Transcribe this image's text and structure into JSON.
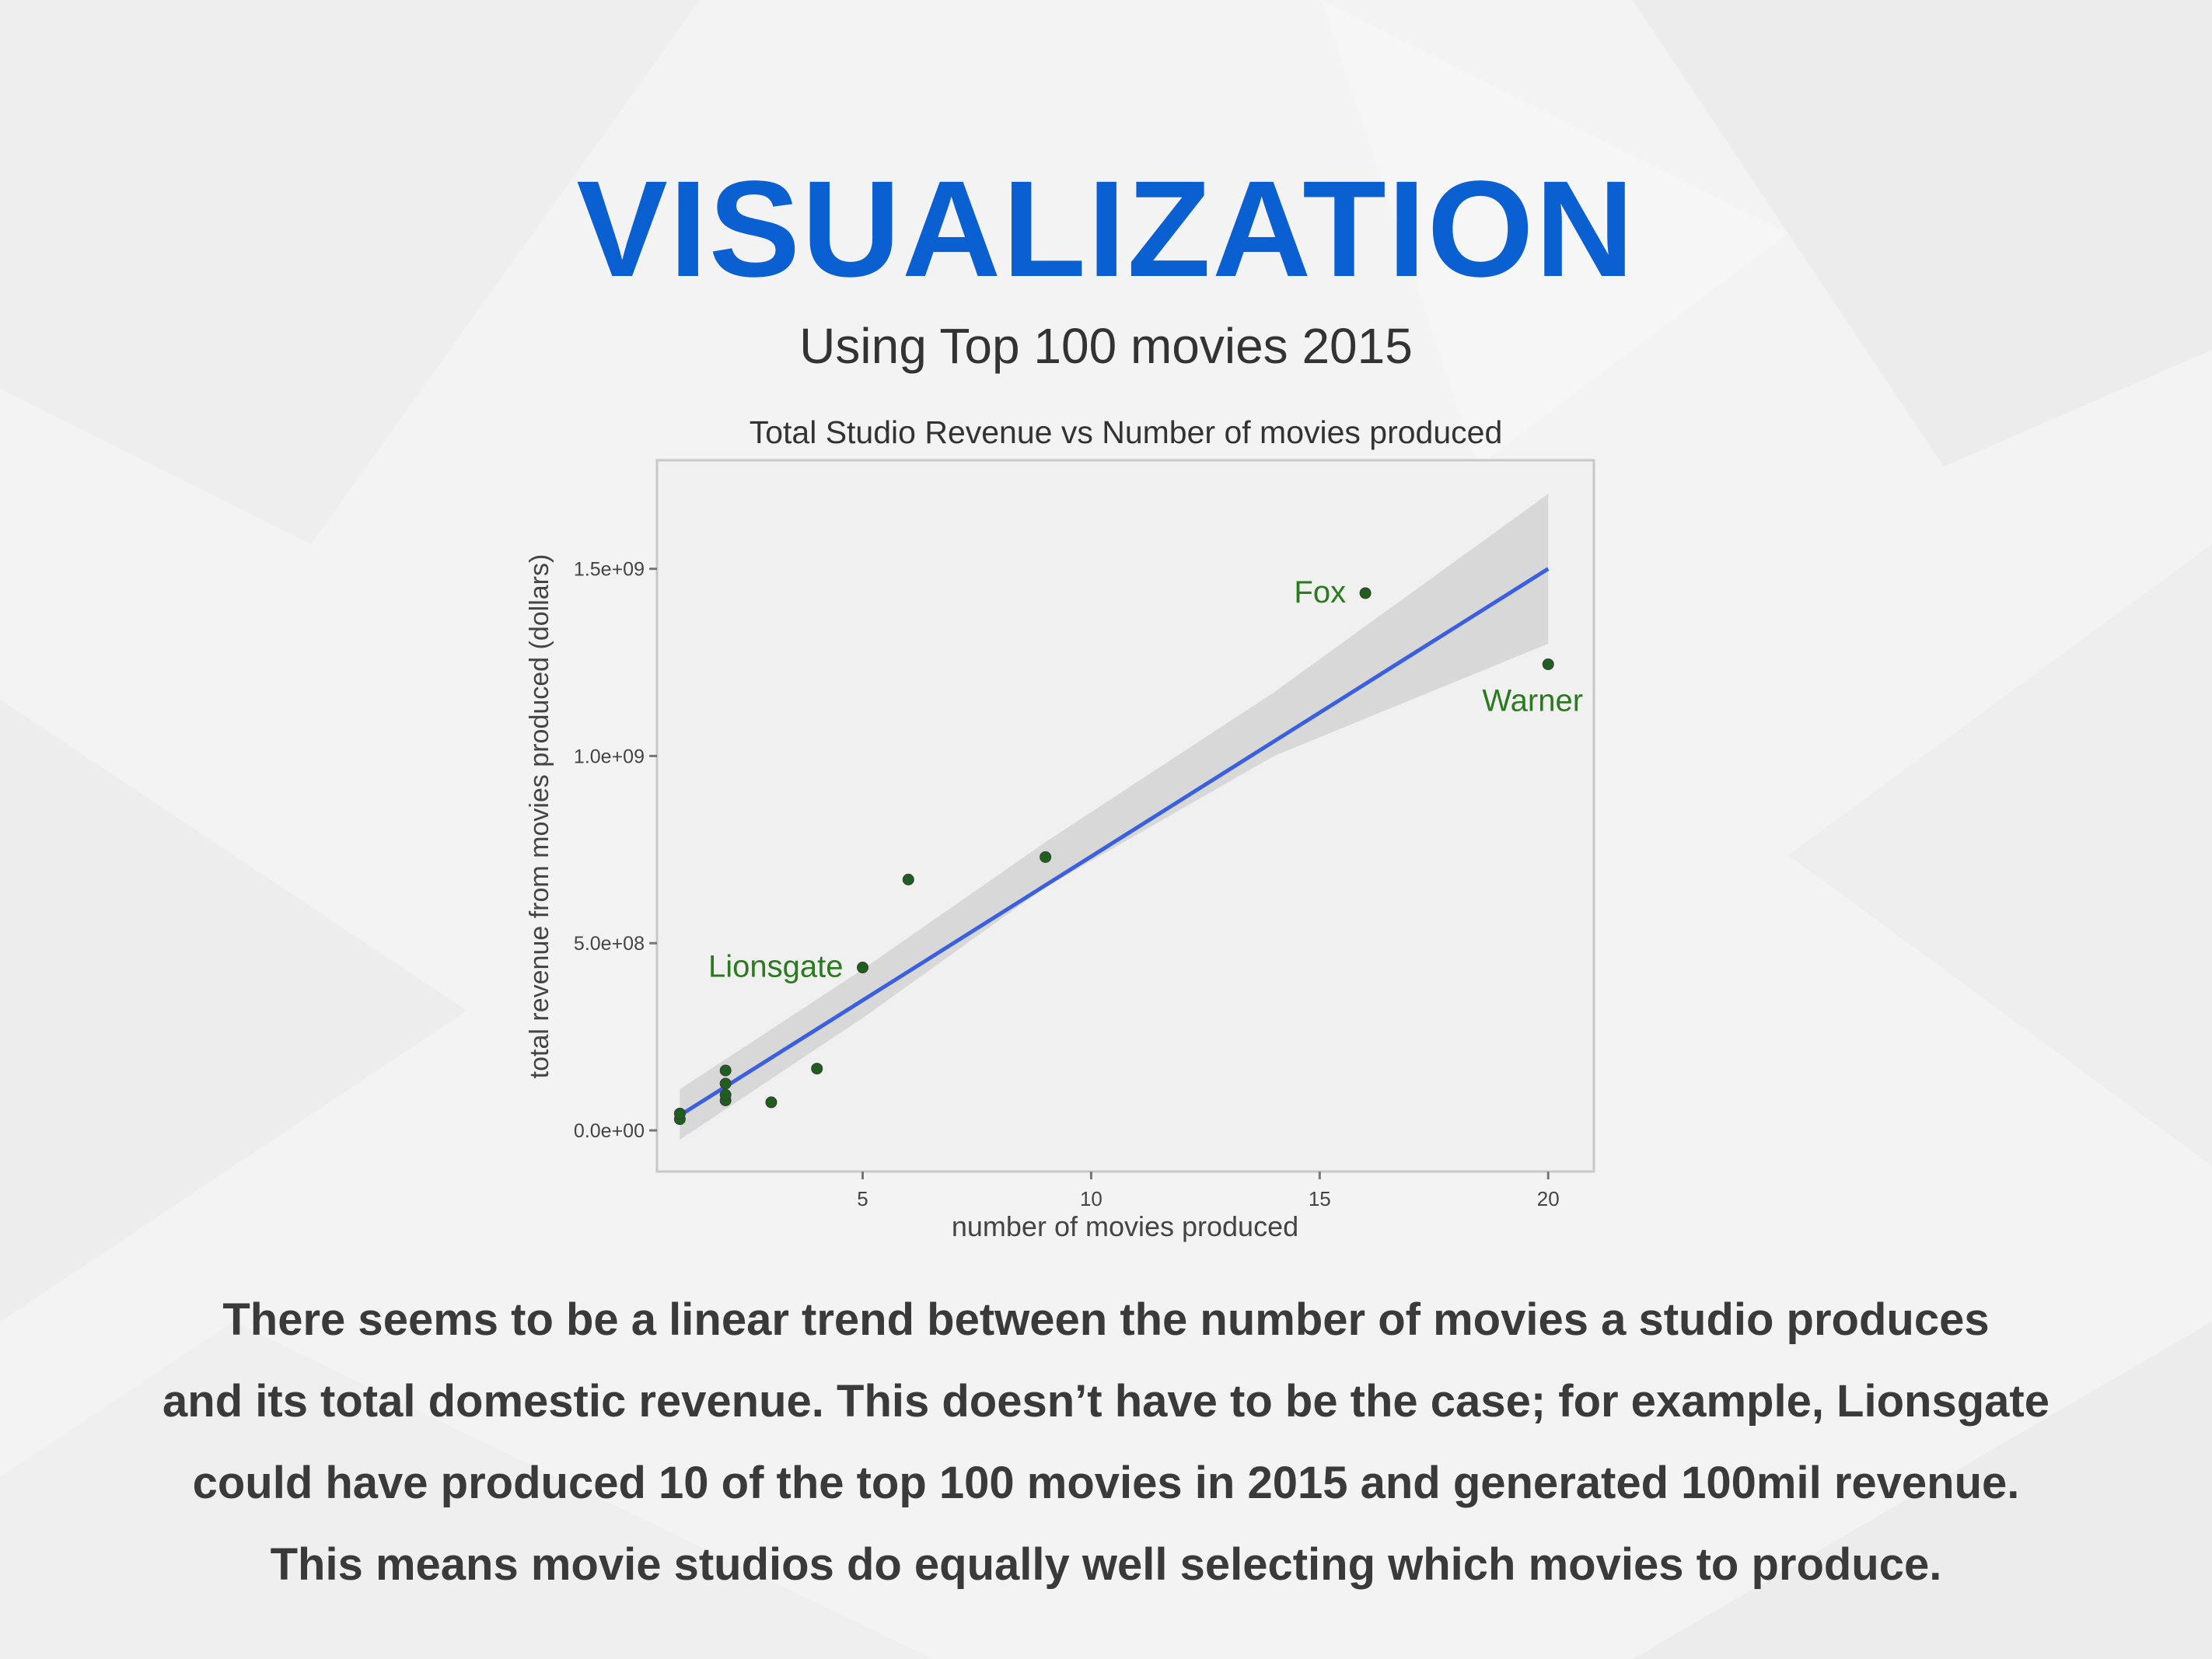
{
  "slide": {
    "title": "VISUALIZATION",
    "subtitle": "Using Top 100 movies 2015",
    "body_lines": [
      "There seems to be a linear trend between the number of movies a studio produces",
      "and its total domestic revenue. This doesn’t have to be the case; for example, Lionsgate",
      "could have produced 10 of the top 100 movies in 2015 and generated 100mil revenue.",
      "This means movie studios do equally well selecting which movies to produce."
    ],
    "colors": {
      "title": "#0a5fd1",
      "text": "#333333",
      "background": "#f2f2f2"
    }
  },
  "chart_data": {
    "type": "scatter",
    "title": "Total Studio Revenue vs Number of movies produced",
    "xlabel": "number of movies produced",
    "ylabel": "total revenue from movies produced (dollars)",
    "xlim": [
      0.5,
      21
    ],
    "ylim": [
      -110000000,
      1790000000
    ],
    "x_ticks": [
      5,
      10,
      15,
      20
    ],
    "x_tick_labels": [
      "5",
      "10",
      "15",
      "20"
    ],
    "y_ticks": [
      0,
      500000000,
      1000000000,
      1500000000
    ],
    "y_tick_labels": [
      "0.0e+00",
      "5.0e+08",
      "1.0e+09",
      "1.5e+09"
    ],
    "grid": false,
    "points": [
      {
        "x": 1,
        "y": 30000000
      },
      {
        "x": 1,
        "y": 45000000
      },
      {
        "x": 2,
        "y": 80000000
      },
      {
        "x": 2,
        "y": 95000000
      },
      {
        "x": 2,
        "y": 125000000
      },
      {
        "x": 2,
        "y": 160000000
      },
      {
        "x": 3,
        "y": 75000000
      },
      {
        "x": 4,
        "y": 165000000
      },
      {
        "x": 5,
        "y": 435000000,
        "label": "Lionsgate"
      },
      {
        "x": 6,
        "y": 670000000
      },
      {
        "x": 9,
        "y": 730000000
      },
      {
        "x": 16,
        "y": 1435000000,
        "label": "Fox"
      },
      {
        "x": 20,
        "y": 1245000000,
        "label": "Warner"
      }
    ],
    "trend_line": {
      "x": [
        1,
        20
      ],
      "y": [
        40000000,
        1500000000
      ]
    },
    "confidence_band": {
      "x": [
        1,
        5,
        9,
        14,
        20
      ],
      "upper": [
        110000000,
        430000000,
        770000000,
        1170000000,
        1700000000
      ],
      "lower": [
        -25000000,
        300000000,
        650000000,
        1000000000,
        1300000000
      ]
    },
    "colors": {
      "points": "#1f5e1f",
      "annotations": "#2b7a1f",
      "trend_line": "#3a5fe0",
      "band": "#d6d6d6",
      "panel_border": "#c8c8c8",
      "axis_text": "#444444"
    }
  }
}
